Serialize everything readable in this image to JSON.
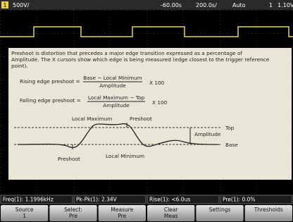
{
  "status_bar": {
    "channel": "1",
    "scale": "500V/",
    "delay": "-60.00s",
    "timebase": "200.0s/",
    "trigger_mode": "Auto",
    "trigger_source": "1",
    "trigger_level": "1.10V"
  },
  "help": {
    "lines": [
      "Preshoot is distortion that precedes a major edge transition expressed as a percentage of",
      "Amplitude. The X cursors show which edge is being measured (edge closest to the trigger reference",
      "point)."
    ],
    "formulas": [
      {
        "name": "Rising edge preshoot =",
        "numerator": "Base − Local Minimum",
        "denominator": "Amplitude",
        "factor": "X 100"
      },
      {
        "name": "Falling edge preshoot =",
        "numerator": "Local Maximum − Top",
        "denominator": "Amplitude",
        "factor": "X 100"
      }
    ],
    "diagram": {
      "local_maximum": "Local Maximum",
      "preshoot_top": "Preshoot",
      "amplitude": "Amplitude",
      "top": "Top",
      "base": "Base",
      "preshoot_bottom": "Preshoot",
      "local_minimum": "Local Minimum"
    }
  },
  "measurements": [
    "Freq(1): 1.1996kHz",
    "Pk-Pk(1): 2.34V",
    "Rise(1): <6.0us",
    "Pre(1): 0.0%"
  ],
  "softkeys": [
    {
      "label": "Source",
      "value": "1"
    },
    {
      "label": "Select:",
      "value": "Pre"
    },
    {
      "label": "Measure",
      "value": "Pre"
    },
    {
      "label": "Clear",
      "value": "Meas"
    },
    {
      "label": "Settings",
      "value": ""
    },
    {
      "label": "Thresholds",
      "value": ""
    }
  ]
}
